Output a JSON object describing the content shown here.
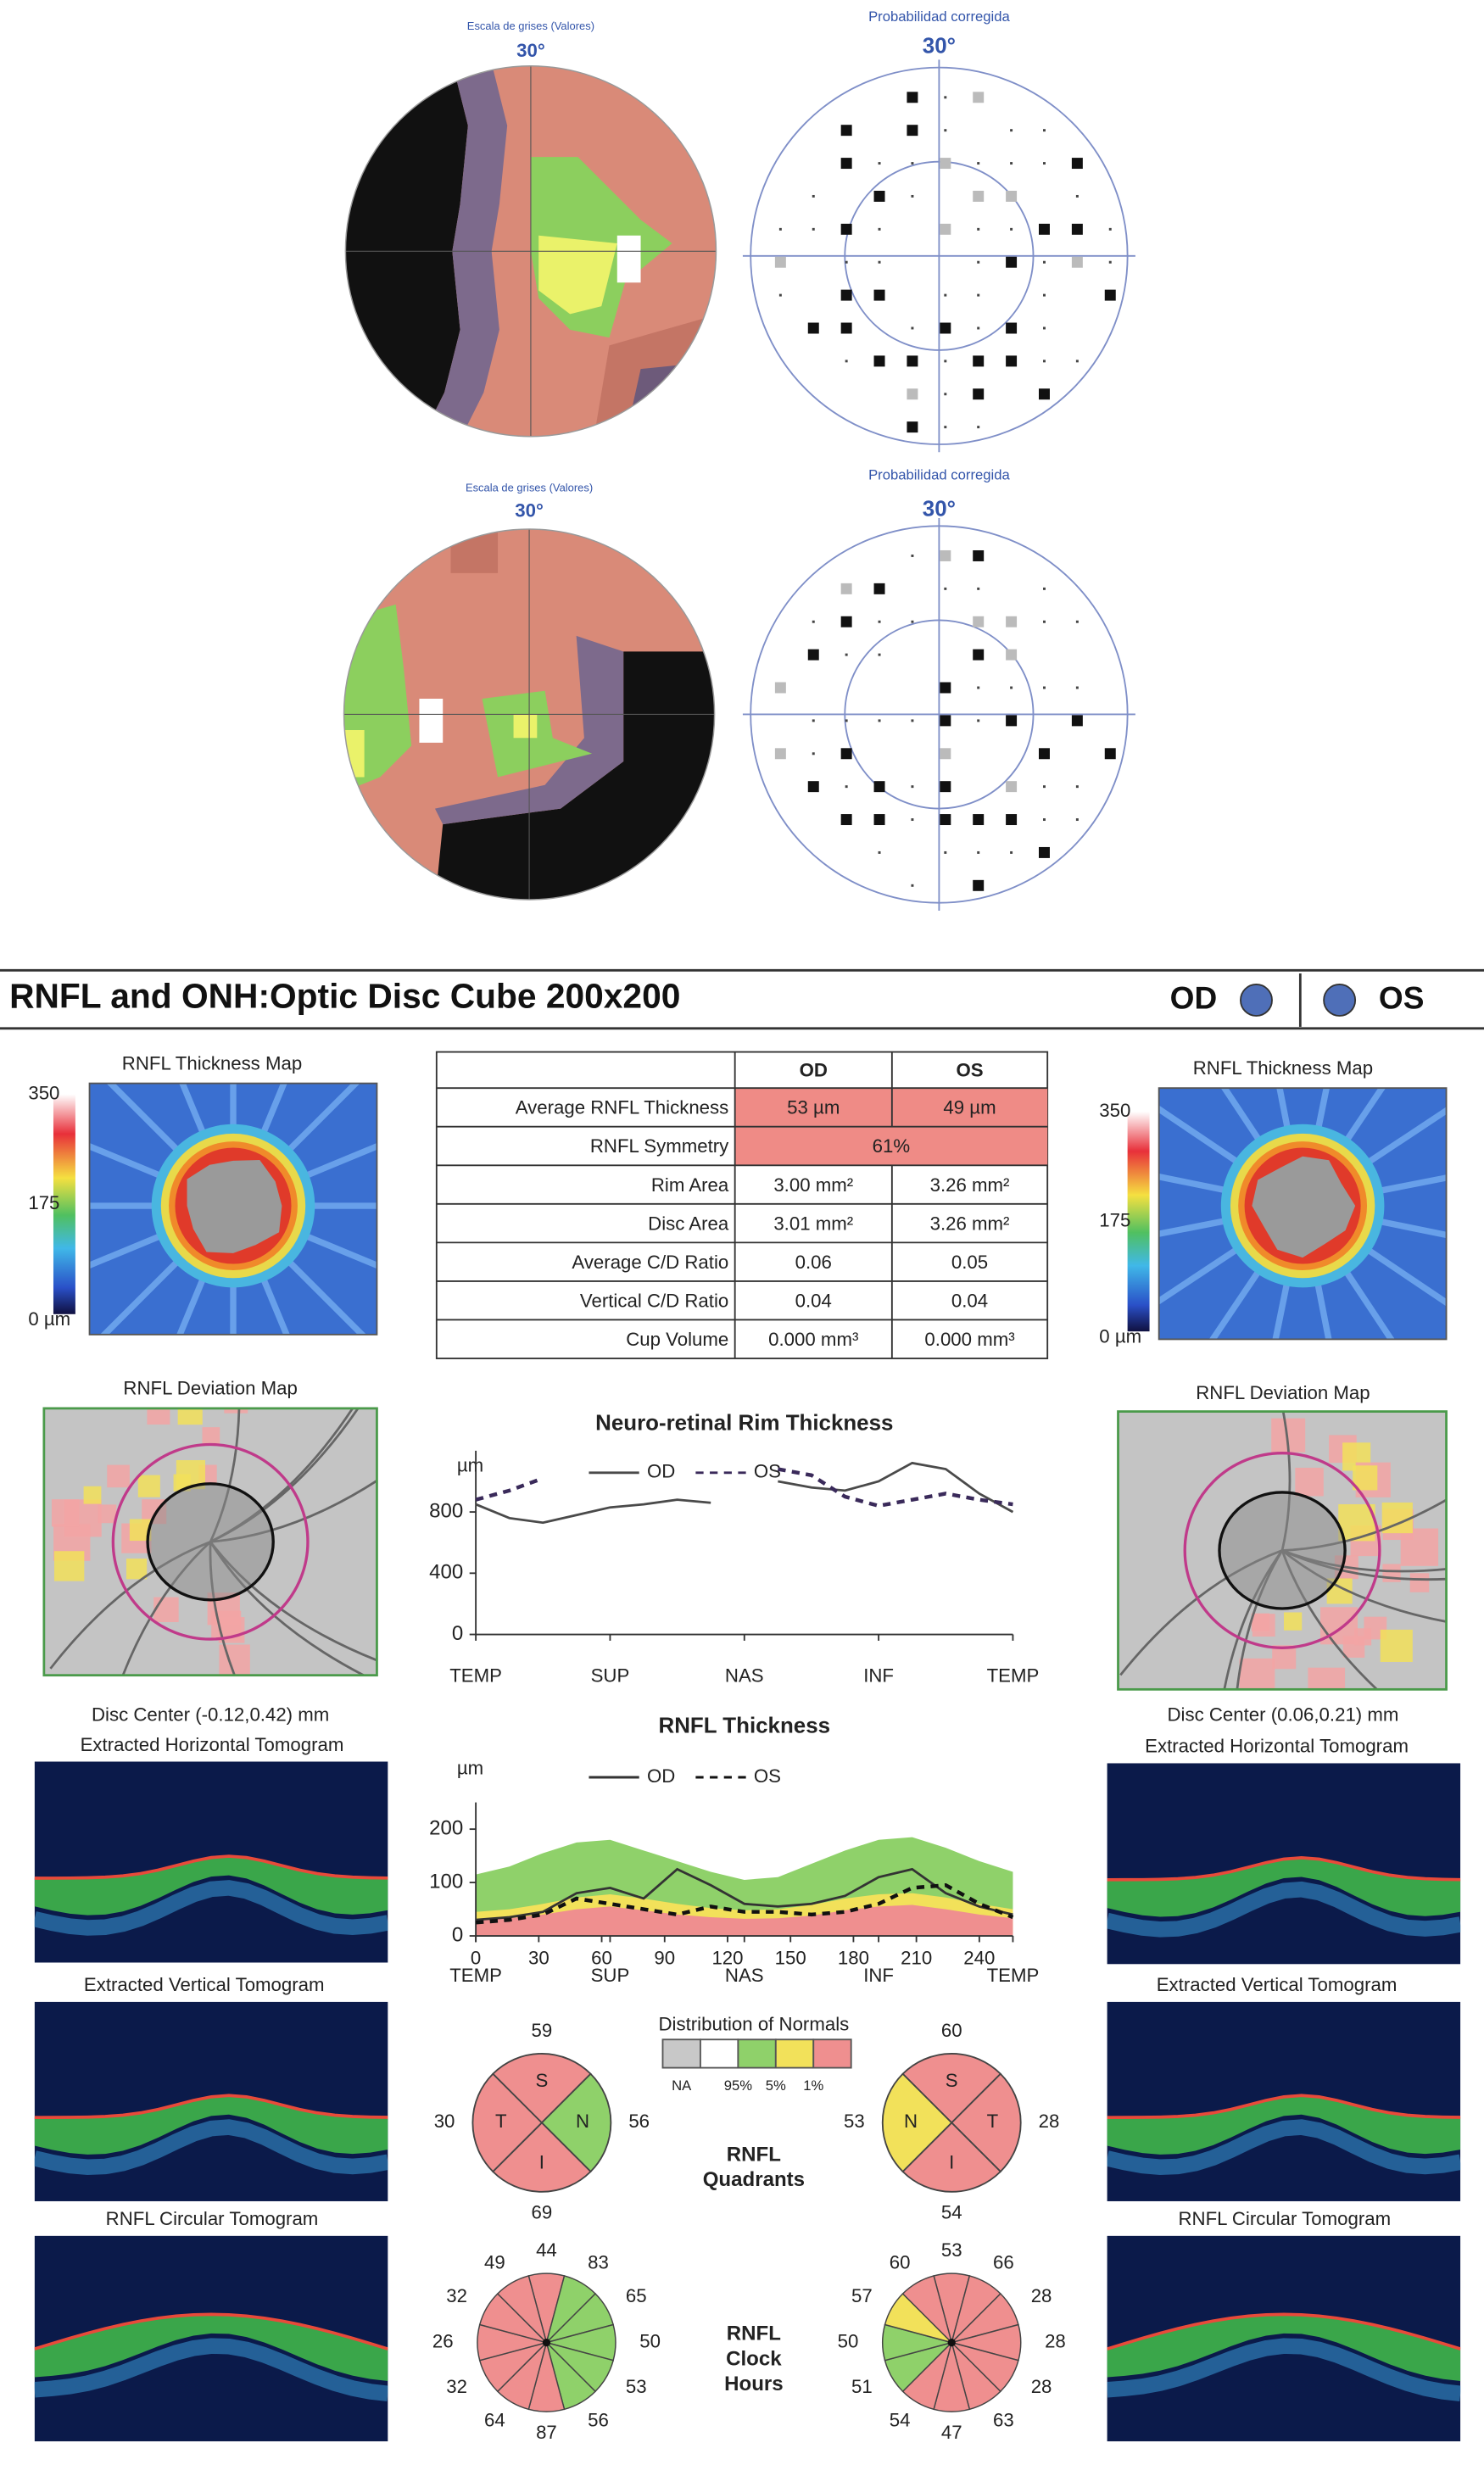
{
  "visual_fields": [
    {
      "grayscale_title": "Escala de grises (Valores)",
      "grayscale_angle": "30°",
      "probability_title": "Probabilidad corregida",
      "probability_angle": "30°"
    },
    {
      "grayscale_title": "Escala de grises (Valores)",
      "grayscale_angle": "30°",
      "probability_title": "Probabilidad corregida",
      "probability_angle": "30°"
    }
  ],
  "report": {
    "title": "RNFL and ONH:Optic Disc Cube 200x200",
    "eye_od": "OD",
    "eye_os": "OS",
    "sides": [
      {
        "thickness_map_title": "RNFL Thickness Map",
        "scale_labels": [
          "350",
          "175",
          "0 µm"
        ],
        "deviation_map_title": "RNFL Deviation Map",
        "disc_center": "Disc Center  (-0.12,0.42) mm",
        "horizontal_tomogram": "Extracted Horizontal Tomogram",
        "vertical_tomogram": "Extracted Vertical Tomogram",
        "circular_tomogram": "RNFL Circular Tomogram"
      },
      {
        "thickness_map_title": "RNFL Thickness Map",
        "scale_labels": [
          "350",
          "175",
          "0 µm"
        ],
        "deviation_map_title": "RNFL Deviation Map",
        "disc_center": "Disc Center  (0.06,0.21) mm",
        "horizontal_tomogram": "Extracted Horizontal Tomogram",
        "vertical_tomogram": "Extracted Vertical Tomogram",
        "circular_tomogram": "RNFL Circular Tomogram"
      }
    ],
    "table": {
      "header": [
        "OD",
        "OS"
      ],
      "rows": [
        [
          "Average RNFL Thickness",
          "53 µm",
          "49 µm"
        ],
        [
          "RNFL Symmetry",
          "61%"
        ],
        [
          "Rim Area",
          "3.00 mm²",
          "3.26 mm²"
        ],
        [
          "Disc Area",
          "3.01 mm²",
          "3.26 mm²"
        ],
        [
          "Average C/D Ratio",
          "0.06",
          "0.05"
        ],
        [
          "Vertical C/D Ratio",
          "0.04",
          "0.04"
        ],
        [
          "Cup Volume",
          "0.000 mm³",
          "0.000 mm³"
        ]
      ]
    },
    "normals_legend": {
      "title": "Distribution of Normals",
      "labels": [
        "NA",
        "95%",
        "5%",
        "1%"
      ],
      "colors": [
        "#c8c8c8",
        "#ffffff",
        "#8fd16a",
        "#f2e15a",
        "#ef8f8f"
      ]
    },
    "quadrants": {
      "label": [
        "RNFL",
        "Quadrants"
      ],
      "eyes": [
        {
          "sectors": [
            "S",
            "N",
            "I",
            "T"
          ],
          "values": [
            59,
            56,
            69,
            30
          ],
          "colors": [
            "#ef8f8f",
            "#8fd16a",
            "#ef8f8f",
            "#ef8f8f"
          ]
        },
        {
          "sectors": [
            "S",
            "T",
            "I",
            "N"
          ],
          "values": [
            60,
            28,
            54,
            53
          ],
          "colors": [
            "#ef8f8f",
            "#ef8f8f",
            "#ef8f8f",
            "#f2e15a"
          ]
        }
      ]
    },
    "clock_hours": {
      "label": [
        "RNFL",
        "Clock",
        "Hours"
      ],
      "eyes": [
        {
          "values": [
            44,
            83,
            65,
            50,
            53,
            56,
            87,
            64,
            32,
            26,
            32,
            49
          ],
          "colors": [
            "#ef8f8f",
            "#8fd16a",
            "#8fd16a",
            "#8fd16a",
            "#8fd16a",
            "#8fd16a",
            "#ef8f8f",
            "#ef8f8f",
            "#ef8f8f",
            "#ef8f8f",
            "#ef8f8f",
            "#ef8f8f"
          ]
        },
        {
          "values": [
            53,
            66,
            28,
            28,
            28,
            63,
            47,
            54,
            51,
            50,
            57,
            60
          ],
          "colors": [
            "#ef8f8f",
            "#ef8f8f",
            "#ef8f8f",
            "#ef8f8f",
            "#ef8f8f",
            "#ef8f8f",
            "#ef8f8f",
            "#ef8f8f",
            "#8fd16a",
            "#8fd16a",
            "#f2e15a",
            "#ef8f8f"
          ]
        }
      ]
    }
  },
  "chart_data": [
    {
      "type": "line",
      "title": "Neuro-retinal Rim Thickness",
      "y_unit": "µm",
      "x": [
        0,
        16,
        32,
        48,
        64,
        80,
        96,
        112,
        128,
        144,
        160,
        176,
        192,
        208,
        224,
        240,
        256
      ],
      "xlim": [
        0,
        256
      ],
      "xticks": [
        {
          "value": 0,
          "label": "TEMP"
        },
        {
          "value": 64,
          "label": "SUP"
        },
        {
          "value": 128,
          "label": "NAS"
        },
        {
          "value": 192,
          "label": "INF"
        },
        {
          "value": 256,
          "label": "TEMP"
        }
      ],
      "ylim": [
        0,
        1200
      ],
      "yticks": [
        0,
        400,
        800
      ],
      "series": [
        {
          "name": "OD",
          "color": "#4a4a4a",
          "style": "solid",
          "values": [
            850,
            760,
            730,
            780,
            830,
            850,
            880,
            860,
            null,
            1000,
            960,
            940,
            1000,
            1120,
            1080,
            920,
            800
          ]
        },
        {
          "name": "OS",
          "color": "#3a2a5a",
          "style": "dashed",
          "values": [
            880,
            940,
            1020,
            null,
            null,
            null,
            null,
            null,
            null,
            1080,
            1040,
            900,
            840,
            880,
            920,
            880,
            850
          ]
        }
      ]
    },
    {
      "type": "line",
      "title": "RNFL Thickness",
      "y_unit": "µm",
      "x": [
        0,
        16,
        32,
        48,
        64,
        80,
        96,
        112,
        128,
        144,
        160,
        176,
        192,
        208,
        224,
        240,
        256
      ],
      "xlim": [
        0,
        256
      ],
      "xticks": [
        0,
        30,
        60,
        90,
        120,
        150,
        180,
        210,
        240
      ],
      "region_ticks": [
        {
          "value": 0,
          "label": "TEMP"
        },
        {
          "value": 64,
          "label": "SUP"
        },
        {
          "value": 128,
          "label": "NAS"
        },
        {
          "value": 192,
          "label": "INF"
        },
        {
          "value": 256,
          "label": "TEMP"
        }
      ],
      "ylim": [
        0,
        250
      ],
      "yticks": [
        0,
        100,
        200
      ],
      "bands": [
        {
          "color": "#8fd16a",
          "values": [
            115,
            130,
            155,
            175,
            180,
            160,
            140,
            120,
            105,
            110,
            135,
            160,
            180,
            185,
            165,
            140,
            120
          ]
        },
        {
          "color": "#f2e15a",
          "values": [
            45,
            50,
            60,
            72,
            78,
            70,
            60,
            52,
            48,
            50,
            58,
            70,
            78,
            80,
            72,
            60,
            50
          ]
        },
        {
          "color": "#ef8f8f",
          "values": [
            30,
            33,
            40,
            50,
            55,
            48,
            40,
            35,
            32,
            33,
            38,
            48,
            55,
            58,
            50,
            40,
            33
          ]
        }
      ],
      "series": [
        {
          "name": "OD",
          "color": "#333333",
          "style": "solid",
          "values": [
            30,
            35,
            45,
            80,
            90,
            70,
            125,
            95,
            60,
            55,
            60,
            75,
            110,
            125,
            80,
            55,
            40
          ]
        },
        {
          "name": "OS",
          "color": "#111111",
          "style": "dashed",
          "values": [
            25,
            30,
            40,
            70,
            60,
            50,
            40,
            55,
            45,
            45,
            40,
            45,
            60,
            90,
            95,
            60,
            35
          ]
        }
      ]
    }
  ]
}
